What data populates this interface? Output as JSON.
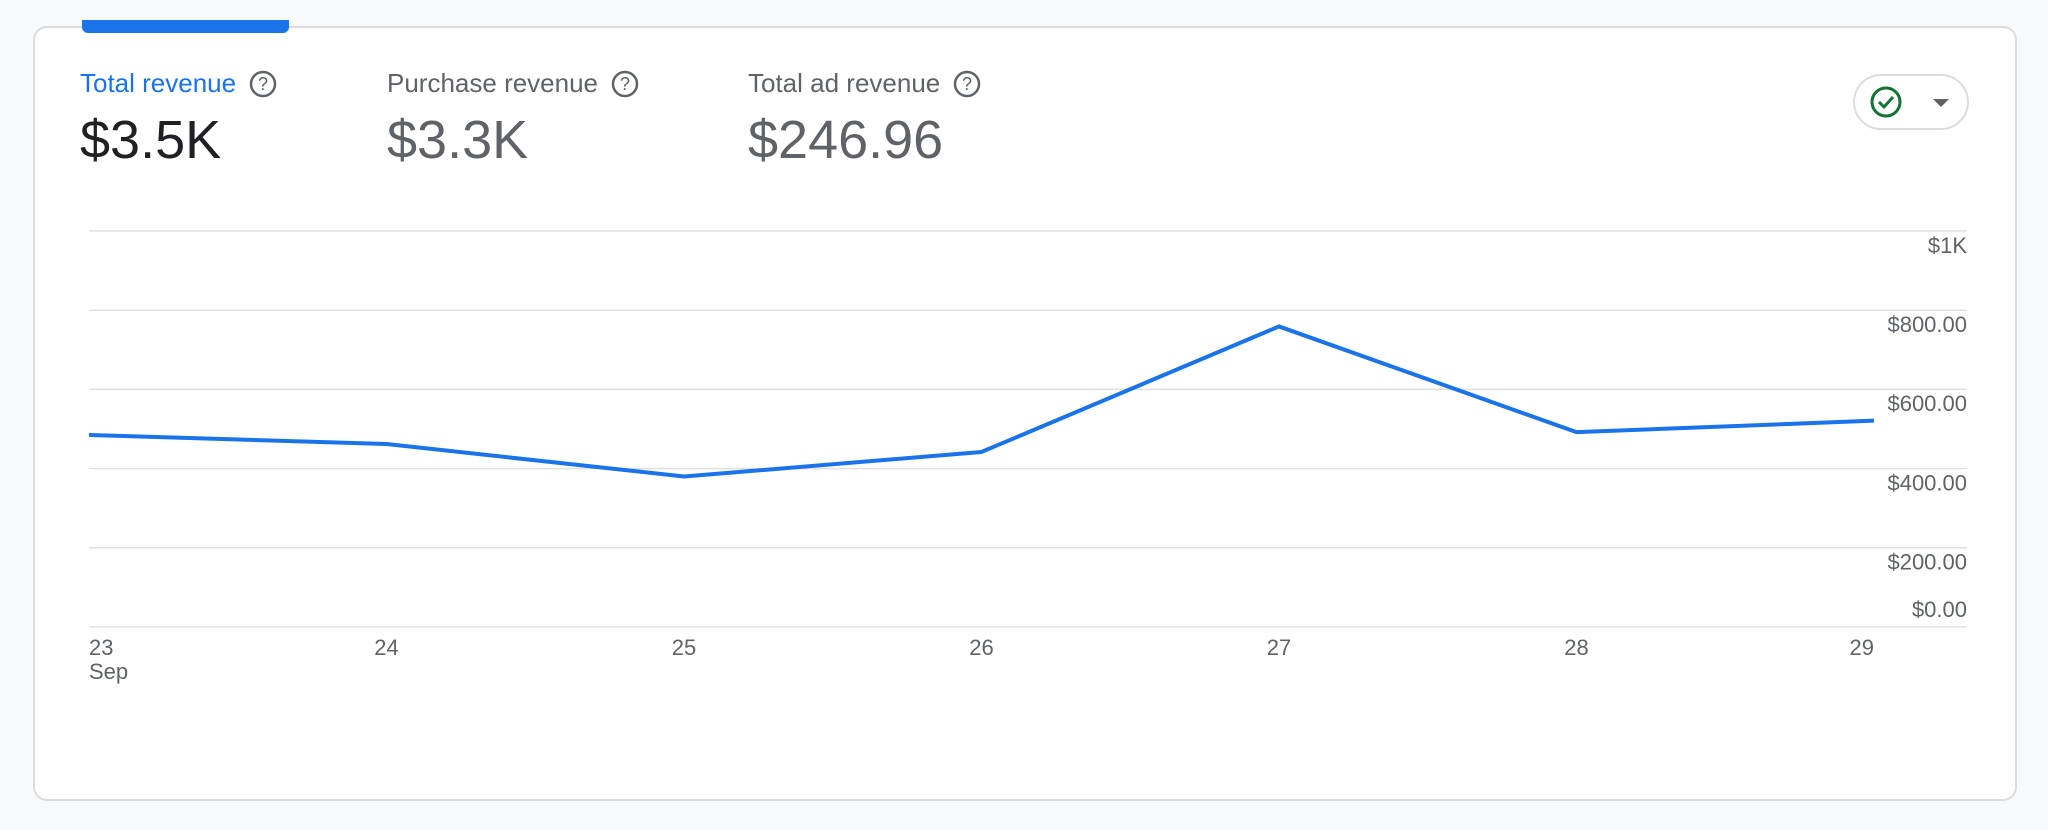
{
  "metrics": [
    {
      "label": "Total revenue",
      "value": "$3.5K"
    },
    {
      "label": "Purchase revenue",
      "value": "$3.3K"
    },
    {
      "label": "Total ad revenue",
      "value": "$246.96"
    }
  ],
  "chart_data": {
    "type": "line",
    "categories": [
      "23",
      "24",
      "25",
      "26",
      "27",
      "28",
      "29"
    ],
    "month": "Sep",
    "series": [
      {
        "name": "Total revenue",
        "color": "#1a73e8",
        "values": [
          485,
          462,
          380,
          442,
          759,
          492,
          521
        ]
      }
    ],
    "ylim": [
      0,
      1000
    ],
    "yticks": [
      {
        "value": 0,
        "label": "$0.00"
      },
      {
        "value": 200,
        "label": "$200.00"
      },
      {
        "value": 400,
        "label": "$400.00"
      },
      {
        "value": 600,
        "label": "$600.00"
      },
      {
        "value": 800,
        "label": "$800.00"
      },
      {
        "value": 1000,
        "label": "$1K"
      }
    ],
    "grid": true
  }
}
